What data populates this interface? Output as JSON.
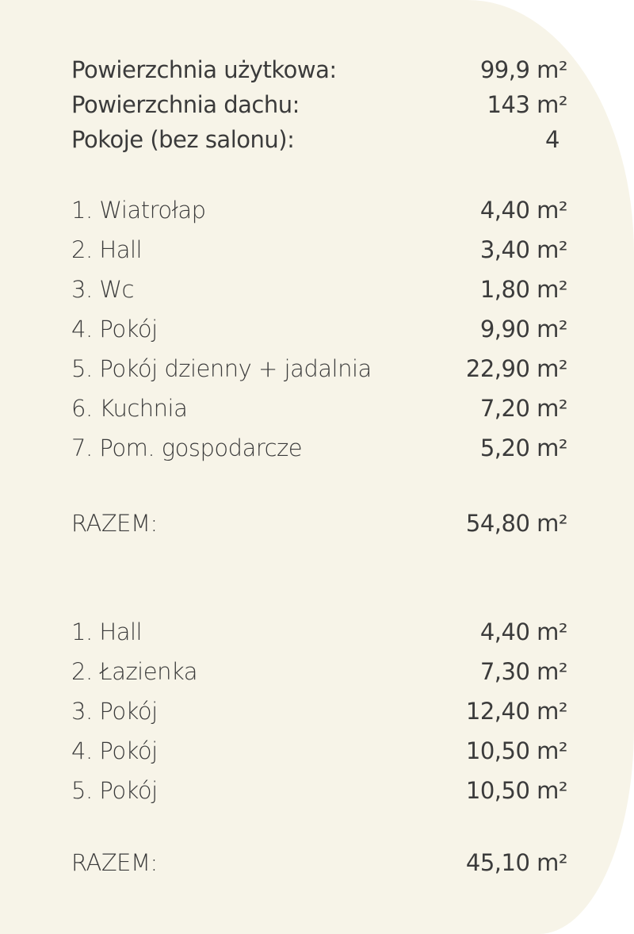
{
  "summary": [
    {
      "label": "Powierzchnia użytkowa:",
      "value": "99,9 m²"
    },
    {
      "label": "Powierzchnia dachu:",
      "value": "143 m²"
    },
    {
      "label": "Pokoje (bez salonu):",
      "value": "4"
    }
  ],
  "ground_floor": {
    "rooms": [
      {
        "label": "1. Wiatrołap",
        "value": "4,40 m²"
      },
      {
        "label": "2. Hall",
        "value": "3,40 m²"
      },
      {
        "label": "3. Wc",
        "value": "1,80 m²"
      },
      {
        "label": "4. Pokój",
        "value": "9,90 m²"
      },
      {
        "label": "5. Pokój dzienny + jadalnia",
        "value": "22,90 m²"
      },
      {
        "label": "6. Kuchnia",
        "value": "7,20 m²"
      },
      {
        "label": "7. Pom. gospodarcze",
        "value": "5,20 m²"
      }
    ],
    "total_label": "RAZEM:",
    "total_value": "54,80 m²"
  },
  "attic": {
    "rooms": [
      {
        "label": "1. Hall",
        "value": "4,40 m²"
      },
      {
        "label": "2. Łazienka",
        "value": "7,30 m²"
      },
      {
        "label": "3. Pokój",
        "value": "12,40 m²"
      },
      {
        "label": "4. Pokój",
        "value": "10,50 m²"
      },
      {
        "label": "5. Pokój",
        "value": "10,50 m²"
      }
    ],
    "total_label": "RAZEM:",
    "total_value": "45,10 m²"
  }
}
